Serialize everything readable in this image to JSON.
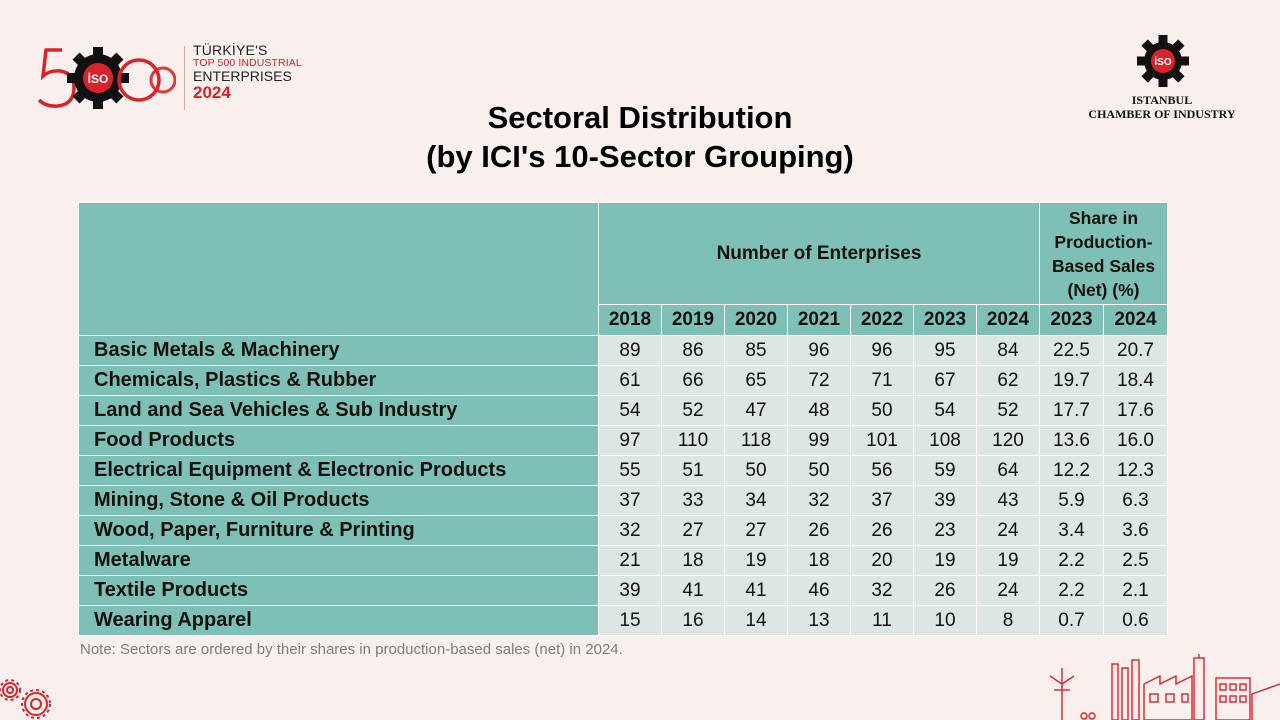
{
  "logo": {
    "big_number": "500",
    "emblem_text": "İSO",
    "line1": "TÜRKİYE'S",
    "line2": "TOP 500 INDUSTRIAL",
    "line3": "ENTERPRISES",
    "year": "2024"
  },
  "org": {
    "emblem_text": "İSO",
    "name_line1": "ISTANBUL",
    "name_line2": "CHAMBER OF INDUSTRY"
  },
  "title": {
    "line1": "Sectoral Distribution",
    "line2": "(by ICI's 10-Sector Grouping)"
  },
  "table": {
    "group_header_enterprises": "Number of Enterprises",
    "group_header_share": "Share in Production-Based Sales (Net) (%)",
    "enterprise_years": [
      "2018",
      "2019",
      "2020",
      "2021",
      "2022",
      "2023",
      "2024"
    ],
    "share_years": [
      "2023",
      "2024"
    ],
    "rows": [
      {
        "sector": "Basic Metals & Machinery",
        "values": [
          "89",
          "86",
          "85",
          "96",
          "96",
          "95",
          "84",
          "22.5",
          "20.7"
        ]
      },
      {
        "sector": "Chemicals, Plastics & Rubber",
        "values": [
          "61",
          "66",
          "65",
          "72",
          "71",
          "67",
          "62",
          "19.7",
          "18.4"
        ]
      },
      {
        "sector": "Land and Sea Vehicles & Sub Industry",
        "values": [
          "54",
          "52",
          "47",
          "48",
          "50",
          "54",
          "52",
          "17.7",
          "17.6"
        ]
      },
      {
        "sector": "Food Products",
        "values": [
          "97",
          "110",
          "118",
          "99",
          "101",
          "108",
          "120",
          "13.6",
          "16.0"
        ]
      },
      {
        "sector": "Electrical Equipment & Electronic Products",
        "values": [
          "55",
          "51",
          "50",
          "50",
          "56",
          "59",
          "64",
          "12.2",
          "12.3"
        ]
      },
      {
        "sector": "Mining, Stone & Oil Products",
        "values": [
          "37",
          "33",
          "34",
          "32",
          "37",
          "39",
          "43",
          "5.9",
          "6.3"
        ]
      },
      {
        "sector": "Wood, Paper, Furniture & Printing",
        "values": [
          "32",
          "27",
          "27",
          "26",
          "26",
          "23",
          "24",
          "3.4",
          "3.6"
        ]
      },
      {
        "sector": "Metalware",
        "values": [
          "21",
          "18",
          "19",
          "18",
          "20",
          "19",
          "19",
          "2.2",
          "2.5"
        ]
      },
      {
        "sector": "Textile Products",
        "values": [
          "39",
          "41",
          "41",
          "46",
          "32",
          "26",
          "24",
          "2.2",
          "2.1"
        ]
      },
      {
        "sector": "Wearing Apparel",
        "values": [
          "15",
          "16",
          "14",
          "13",
          "11",
          "10",
          "8",
          "0.7",
          "0.6"
        ]
      }
    ]
  },
  "note": "Note: Sectors are ordered by their shares in production-based sales (net) in 2024.",
  "colors": {
    "background": "#f9efed",
    "header_teal": "#7fc0b6",
    "cell_gray": "#dde6e3",
    "brand_red": "#d8232a"
  }
}
